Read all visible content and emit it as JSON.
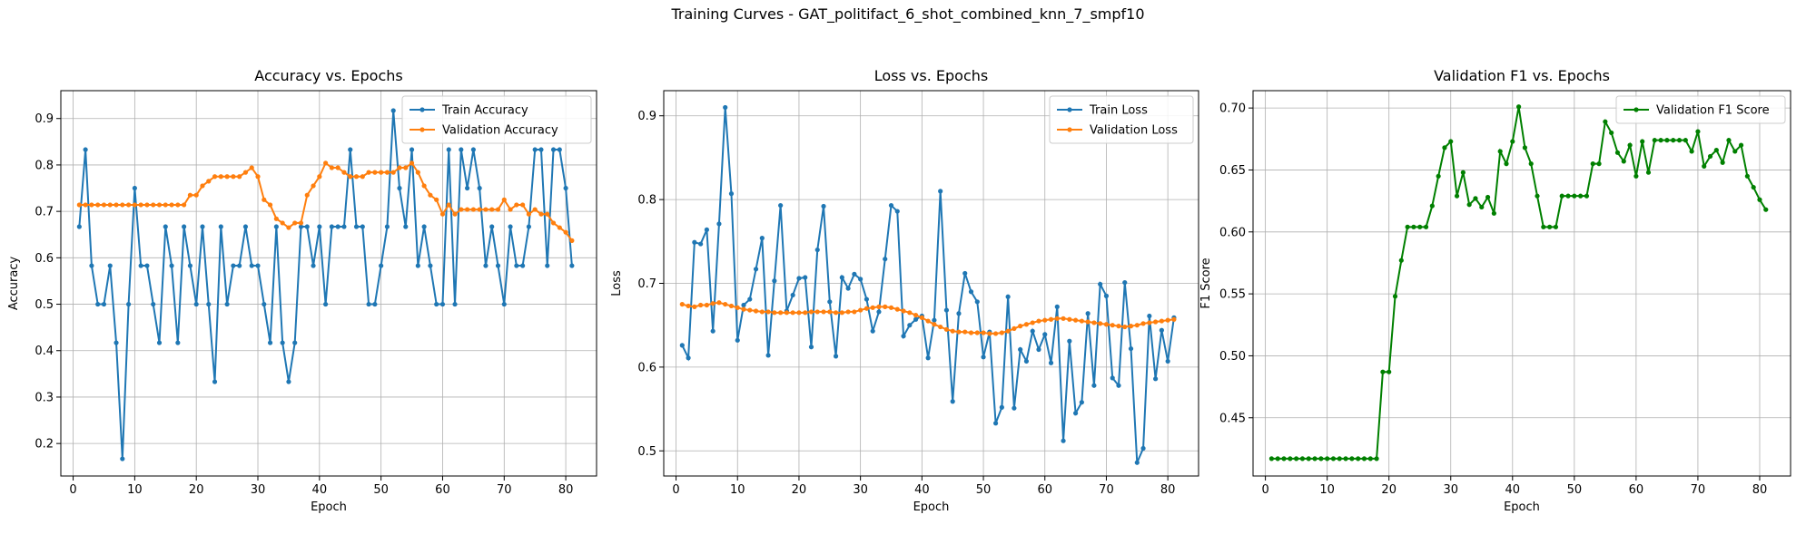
{
  "figure": {
    "suptitle": "Training Curves - GAT_politifact_6_shot_combined_knn_7_smpf10"
  },
  "colors": {
    "blue": "#1f77b4",
    "orange": "#ff7f0e",
    "green": "#008000",
    "grid": "#b0b0b0"
  },
  "chart_data": [
    {
      "type": "line",
      "title": "Accuracy vs. Epochs",
      "xlabel": "Epoch",
      "ylabel": "Accuracy",
      "xlim": [
        -2,
        85
      ],
      "ylim": [
        0.13,
        0.96
      ],
      "xticks": [
        0,
        10,
        20,
        30,
        40,
        50,
        60,
        70,
        80
      ],
      "yticks": [
        0.2,
        0.3,
        0.4,
        0.5,
        0.6,
        0.7,
        0.8,
        0.9
      ],
      "ytick_labels": [
        "0.2",
        "0.3",
        "0.4",
        "0.5",
        "0.6",
        "0.7",
        "0.8",
        "0.9"
      ],
      "grid": true,
      "legend": "upper right",
      "x": [
        1,
        2,
        3,
        4,
        5,
        6,
        7,
        8,
        9,
        10,
        11,
        12,
        13,
        14,
        15,
        16,
        17,
        18,
        19,
        20,
        21,
        22,
        23,
        24,
        25,
        26,
        27,
        28,
        29,
        30,
        31,
        32,
        33,
        34,
        35,
        36,
        37,
        38,
        39,
        40,
        41,
        42,
        43,
        44,
        45,
        46,
        47,
        48,
        49,
        50,
        51,
        52,
        53,
        54,
        55,
        56,
        57,
        58,
        59,
        60,
        61,
        62,
        63,
        64,
        65,
        66,
        67,
        68,
        69,
        70,
        71,
        72,
        73,
        74,
        75,
        76,
        77,
        78,
        79,
        80,
        81
      ],
      "series": [
        {
          "name": "Train Accuracy",
          "color": "#1f77b4",
          "values": [
            0.667,
            0.833,
            0.583,
            0.5,
            0.5,
            0.583,
            0.417,
            0.167,
            0.5,
            0.75,
            0.583,
            0.583,
            0.5,
            0.417,
            0.667,
            0.583,
            0.417,
            0.667,
            0.583,
            0.5,
            0.667,
            0.5,
            0.333,
            0.667,
            0.5,
            0.583,
            0.583,
            0.667,
            0.583,
            0.583,
            0.5,
            0.417,
            0.667,
            0.417,
            0.333,
            0.417,
            0.667,
            0.667,
            0.583,
            0.667,
            0.5,
            0.667,
            0.667,
            0.667,
            0.833,
            0.667,
            0.667,
            0.5,
            0.5,
            0.583,
            0.667,
            0.917,
            0.75,
            0.667,
            0.833,
            0.583,
            0.667,
            0.583,
            0.5,
            0.5,
            0.833,
            0.5,
            0.833,
            0.75,
            0.833,
            0.75,
            0.583,
            0.667,
            0.583,
            0.5,
            0.667,
            0.583,
            0.583,
            0.667,
            0.833,
            0.833,
            0.583,
            0.833,
            0.833,
            0.75,
            0.583
          ]
        },
        {
          "name": "Validation Accuracy",
          "color": "#ff7f0e",
          "values": [
            0.714,
            0.714,
            0.714,
            0.714,
            0.714,
            0.714,
            0.714,
            0.714,
            0.714,
            0.714,
            0.714,
            0.714,
            0.714,
            0.714,
            0.714,
            0.714,
            0.714,
            0.714,
            0.735,
            0.735,
            0.755,
            0.765,
            0.775,
            0.775,
            0.775,
            0.775,
            0.775,
            0.784,
            0.794,
            0.775,
            0.725,
            0.714,
            0.684,
            0.675,
            0.665,
            0.675,
            0.675,
            0.735,
            0.755,
            0.775,
            0.804,
            0.794,
            0.794,
            0.784,
            0.775,
            0.775,
            0.775,
            0.784,
            0.784,
            0.784,
            0.784,
            0.784,
            0.794,
            0.794,
            0.804,
            0.784,
            0.755,
            0.735,
            0.725,
            0.694,
            0.714,
            0.694,
            0.704,
            0.704,
            0.704,
            0.704,
            0.704,
            0.704,
            0.704,
            0.725,
            0.704,
            0.714,
            0.714,
            0.694,
            0.704,
            0.694,
            0.694,
            0.675,
            0.665,
            0.655,
            0.637
          ]
        }
      ]
    },
    {
      "type": "line",
      "title": "Loss vs. Epochs",
      "xlabel": "Epoch",
      "ylabel": "Loss",
      "xlim": [
        -2,
        85
      ],
      "ylim": [
        0.47,
        0.93
      ],
      "xticks": [
        0,
        10,
        20,
        30,
        40,
        50,
        60,
        70,
        80
      ],
      "yticks": [
        0.5,
        0.6,
        0.7,
        0.8,
        0.9
      ],
      "ytick_labels": [
        "0.5",
        "0.6",
        "0.7",
        "0.8",
        "0.9"
      ],
      "grid": true,
      "legend": "upper right",
      "x": [
        1,
        2,
        3,
        4,
        5,
        6,
        7,
        8,
        9,
        10,
        11,
        12,
        13,
        14,
        15,
        16,
        17,
        18,
        19,
        20,
        21,
        22,
        23,
        24,
        25,
        26,
        27,
        28,
        29,
        30,
        31,
        32,
        33,
        34,
        35,
        36,
        37,
        38,
        39,
        40,
        41,
        42,
        43,
        44,
        45,
        46,
        47,
        48,
        49,
        50,
        51,
        52,
        53,
        54,
        55,
        56,
        57,
        58,
        59,
        60,
        61,
        62,
        63,
        64,
        65,
        66,
        67,
        68,
        69,
        70,
        71,
        72,
        73,
        74,
        75,
        76,
        77,
        78,
        79,
        80,
        81
      ],
      "series": [
        {
          "name": "Train Loss",
          "color": "#1f77b4",
          "values": [
            0.626,
            0.611,
            0.749,
            0.747,
            0.764,
            0.643,
            0.771,
            0.91,
            0.807,
            0.632,
            0.674,
            0.681,
            0.717,
            0.754,
            0.614,
            0.703,
            0.793,
            0.667,
            0.686,
            0.706,
            0.707,
            0.624,
            0.74,
            0.792,
            0.678,
            0.613,
            0.707,
            0.694,
            0.711,
            0.705,
            0.681,
            0.643,
            0.666,
            0.729,
            0.793,
            0.786,
            0.637,
            0.65,
            0.657,
            0.661,
            0.611,
            0.656,
            0.81,
            0.668,
            0.559,
            0.664,
            0.712,
            0.69,
            0.678,
            0.612,
            0.642,
            0.533,
            0.552,
            0.684,
            0.551,
            0.621,
            0.607,
            0.643,
            0.621,
            0.639,
            0.605,
            0.672,
            0.512,
            0.631,
            0.545,
            0.558,
            0.664,
            0.578,
            0.699,
            0.685,
            0.587,
            0.578,
            0.701,
            0.622,
            0.486,
            0.503,
            0.661,
            0.586,
            0.644,
            0.607,
            0.659
          ]
        },
        {
          "name": "Validation Loss",
          "color": "#ff7f0e",
          "values": [
            0.675,
            0.673,
            0.672,
            0.674,
            0.674,
            0.676,
            0.677,
            0.675,
            0.673,
            0.671,
            0.669,
            0.668,
            0.667,
            0.666,
            0.666,
            0.665,
            0.665,
            0.665,
            0.665,
            0.665,
            0.665,
            0.666,
            0.666,
            0.666,
            0.666,
            0.665,
            0.665,
            0.666,
            0.666,
            0.668,
            0.67,
            0.671,
            0.672,
            0.672,
            0.671,
            0.669,
            0.667,
            0.665,
            0.662,
            0.659,
            0.655,
            0.651,
            0.648,
            0.645,
            0.643,
            0.642,
            0.642,
            0.641,
            0.641,
            0.641,
            0.64,
            0.64,
            0.641,
            0.643,
            0.646,
            0.649,
            0.651,
            0.653,
            0.655,
            0.656,
            0.657,
            0.658,
            0.658,
            0.657,
            0.656,
            0.655,
            0.654,
            0.653,
            0.652,
            0.651,
            0.65,
            0.649,
            0.648,
            0.649,
            0.65,
            0.652,
            0.653,
            0.654,
            0.655,
            0.656,
            0.657
          ]
        }
      ]
    },
    {
      "type": "line",
      "title": "Validation F1 vs. Epochs",
      "xlabel": "Epoch",
      "ylabel": "F1 Score",
      "xlim": [
        -2,
        85
      ],
      "ylim": [
        0.403,
        0.714
      ],
      "xticks": [
        0,
        10,
        20,
        30,
        40,
        50,
        60,
        70,
        80
      ],
      "yticks": [
        0.45,
        0.5,
        0.55,
        0.6,
        0.65,
        0.7
      ],
      "ytick_labels": [
        "0.45",
        "0.50",
        "0.55",
        "0.60",
        "0.65",
        "0.70"
      ],
      "grid": true,
      "legend": "upper right",
      "x": [
        1,
        2,
        3,
        4,
        5,
        6,
        7,
        8,
        9,
        10,
        11,
        12,
        13,
        14,
        15,
        16,
        17,
        18,
        19,
        20,
        21,
        22,
        23,
        24,
        25,
        26,
        27,
        28,
        29,
        30,
        31,
        32,
        33,
        34,
        35,
        36,
        37,
        38,
        39,
        40,
        41,
        42,
        43,
        44,
        45,
        46,
        47,
        48,
        49,
        50,
        51,
        52,
        53,
        54,
        55,
        56,
        57,
        58,
        59,
        60,
        61,
        62,
        63,
        64,
        65,
        66,
        67,
        68,
        69,
        70,
        71,
        72,
        73,
        74,
        75,
        76,
        77,
        78,
        79,
        80,
        81
      ],
      "series": [
        {
          "name": "Validation F1 Score",
          "color": "#008000",
          "values": [
            0.417,
            0.417,
            0.417,
            0.417,
            0.417,
            0.417,
            0.417,
            0.417,
            0.417,
            0.417,
            0.417,
            0.417,
            0.417,
            0.417,
            0.417,
            0.417,
            0.417,
            0.417,
            0.487,
            0.487,
            0.548,
            0.577,
            0.604,
            0.604,
            0.604,
            0.604,
            0.621,
            0.645,
            0.668,
            0.673,
            0.629,
            0.648,
            0.622,
            0.627,
            0.62,
            0.628,
            0.615,
            0.665,
            0.655,
            0.673,
            0.701,
            0.668,
            0.655,
            0.629,
            0.604,
            0.604,
            0.604,
            0.629,
            0.629,
            0.629,
            0.629,
            0.629,
            0.655,
            0.655,
            0.689,
            0.68,
            0.664,
            0.657,
            0.67,
            0.645,
            0.673,
            0.648,
            0.674,
            0.674,
            0.674,
            0.674,
            0.674,
            0.674,
            0.665,
            0.681,
            0.653,
            0.661,
            0.666,
            0.656,
            0.674,
            0.665,
            0.67,
            0.645,
            0.636,
            0.626,
            0.618
          ]
        }
      ]
    }
  ]
}
